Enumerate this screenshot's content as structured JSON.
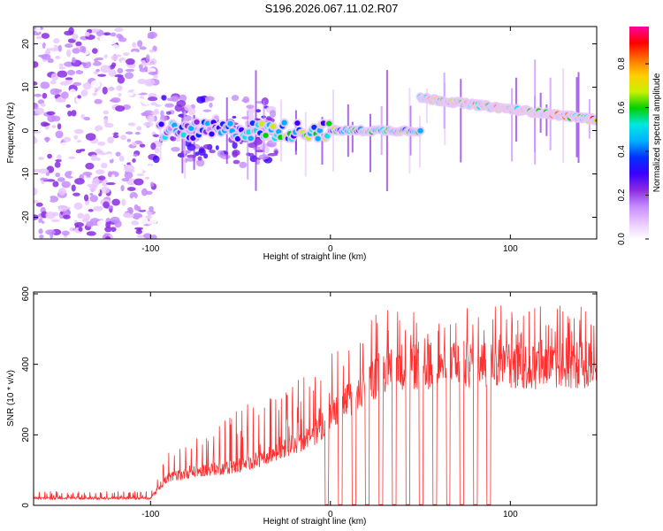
{
  "title": "S196.2026.067.11.02.R07",
  "chart_data": [
    {
      "type": "heatmap",
      "title": "S196.2026.067.11.02.R07",
      "xlabel": "Height of straight line (km)",
      "ylabel": "Frequency (Hz)",
      "xlim": [
        -165,
        148
      ],
      "ylim": [
        -25,
        24
      ],
      "xticks": [
        -100,
        0,
        100
      ],
      "xtick_labels": [
        "-100",
        "0",
        "100"
      ],
      "yticks": [
        -20,
        -10,
        0,
        10,
        20
      ],
      "ytick_labels": [
        "-20",
        "-10",
        "0",
        "10",
        "20"
      ],
      "colorbar": {
        "label": "Normalized spectral amplitude",
        "ticks": [
          0.0,
          0.2,
          0.4,
          0.6,
          0.8
        ],
        "tick_labels": [
          "0.0",
          "0.2",
          "0.4",
          "0.6",
          "0.8"
        ],
        "range": [
          0,
          0.97
        ],
        "stops": [
          "#ffffff",
          "#e9c8ff",
          "#c48cff",
          "#8a2be2",
          "#3a00ff",
          "#0030ff",
          "#00b0ff",
          "#00e8e0",
          "#00d000",
          "#c8f000",
          "#ffd000",
          "#ff7000",
          "#ff0000",
          "#ff00a0"
        ]
      },
      "ridge": {
        "segments": [
          {
            "x": [
              -95,
              50
            ],
            "freq": [
              0.0,
              0.0
            ]
          },
          {
            "x": [
              50,
              148
            ],
            "freq": [
              7.5,
              2.5
            ]
          }
        ],
        "description_values": {
          "noise_region_x": [
            -165,
            -97
          ],
          "step_x": 52
        }
      }
    },
    {
      "type": "line",
      "xlabel": "Height of straight line (km)",
      "ylabel": "SNR (10 * v/v)",
      "xlim": [
        -165,
        148
      ],
      "ylim": [
        0,
        605
      ],
      "xticks": [
        -100,
        0,
        100
      ],
      "xtick_labels": [
        "-100",
        "0",
        "100"
      ],
      "yticks": [
        0,
        200,
        400,
        600
      ],
      "ytick_labels": [
        "0",
        "200",
        "400",
        "600"
      ],
      "series": [
        {
          "name": "SNR",
          "color": "#ff3030",
          "x": [
            -165,
            -100,
            -90,
            -70,
            -50,
            -30,
            -10,
            10,
            20,
            30,
            40,
            60,
            80,
            100,
            120,
            148
          ],
          "baseline": [
            20,
            20,
            80,
            100,
            110,
            150,
            200,
            300,
            340,
            390,
            395,
            395,
            400,
            395,
            395,
            400
          ],
          "peaks": [
            40,
            40,
            160,
            200,
            280,
            320,
            380,
            480,
            540,
            560,
            560,
            570,
            570,
            580,
            580,
            560
          ]
        }
      ]
    }
  ]
}
